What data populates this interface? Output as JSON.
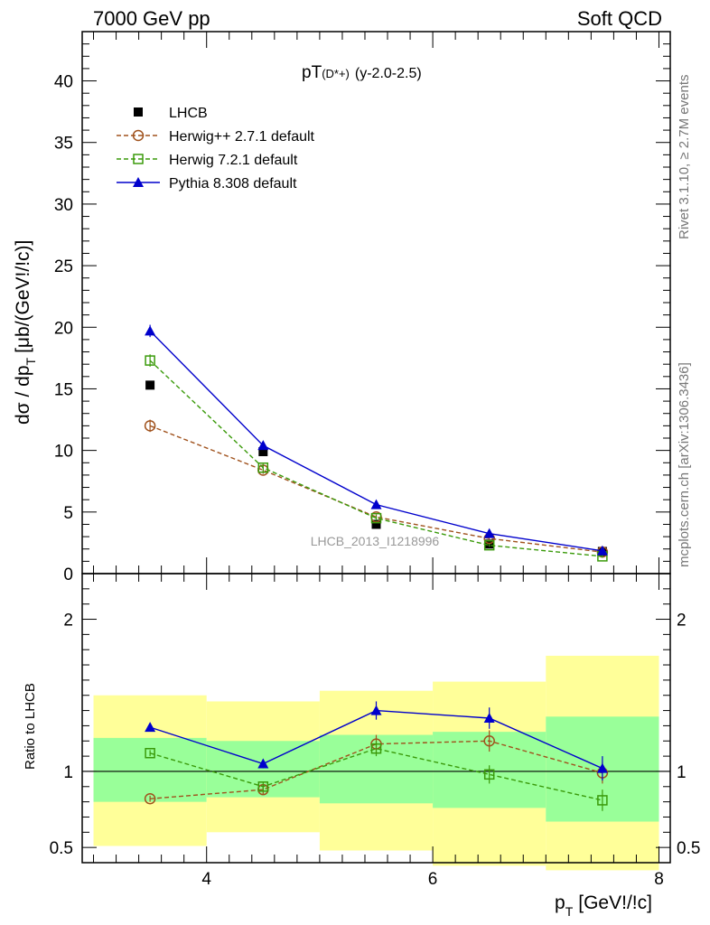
{
  "header": {
    "left": "7000 GeV pp",
    "right": "Soft QCD"
  },
  "side_labels": {
    "rivet": "Rivet 3.1.10, ≥ 2.7M events",
    "mcplots": "mcplots.cern.ch [arXiv:1306.3436]"
  },
  "chart_data": [
    {
      "type": "scatter",
      "title_main": "pT",
      "title_sub": "(D*+)",
      "title_rest": "(y-2.0-2.5)",
      "xlabel_main": "p",
      "xlabel_sub": "T",
      "xlabel_rest": "[GeV!/!c]",
      "ylabel_prefix": "dσ / dp",
      "ylabel_sub": "T",
      "ylabel_rest": "[μb/(GeV!/!c)]",
      "watermark": "LHCB_2013_I1218996",
      "xlim": [
        2.9,
        8.1
      ],
      "ylim": [
        0,
        44
      ],
      "x_ticks": [
        4,
        6,
        8
      ],
      "y_ticks": [
        0,
        5,
        10,
        15,
        20,
        25,
        30,
        35,
        40
      ],
      "y_tick_labels": [
        "0",
        "5",
        "10",
        "15",
        "20",
        "25",
        "30",
        "35",
        "40"
      ],
      "x": [
        3.5,
        4.5,
        5.5,
        6.5,
        7.5
      ],
      "legend_position": "top-left",
      "series": [
        {
          "name": "LHCB",
          "values": [
            15.3,
            9.9,
            4.0,
            2.4,
            1.8
          ],
          "errors": [
            0.3,
            0.3,
            0.15,
            0.1,
            0.1
          ],
          "color": "#000000",
          "marker": "filled-square",
          "line": "none"
        },
        {
          "name": "Herwig++ 2.7.1 default",
          "values": [
            12.0,
            8.4,
            4.6,
            2.85,
            1.75
          ],
          "errors": [
            0.5,
            0.3,
            0.2,
            0.12,
            0.1
          ],
          "color": "#a0521d",
          "marker": "open-circle",
          "line": "dashed"
        },
        {
          "name": "Herwig 7.2.1 default",
          "values": [
            17.3,
            8.6,
            4.5,
            2.3,
            1.4
          ],
          "errors": [
            0.5,
            0.3,
            0.2,
            0.12,
            0.1
          ],
          "color": "#3a9a0a",
          "marker": "open-square",
          "line": "dashed"
        },
        {
          "name": "Pythia 8.308 default",
          "values": [
            19.7,
            10.4,
            5.6,
            3.25,
            1.85
          ],
          "errors": [
            0.5,
            0.3,
            0.2,
            0.12,
            0.1
          ],
          "color": "#0000cc",
          "marker": "filled-triangle",
          "line": "solid"
        }
      ]
    },
    {
      "type": "scatter",
      "ylabel": "Ratio to LHCB",
      "xlim": [
        2.9,
        8.1
      ],
      "ylim": [
        0.4,
        2.3
      ],
      "y_ticks": [
        0.5,
        1,
        2
      ],
      "y_tick_labels": [
        "0.5",
        "1",
        "2"
      ],
      "x_ticks": [
        4,
        6,
        8
      ],
      "x_tick_labels": [
        "4",
        "6",
        "8"
      ],
      "reference_line": 1,
      "uncertainty_bands": {
        "bins": [
          [
            3.0,
            4.0
          ],
          [
            4.0,
            5.0
          ],
          [
            5.0,
            6.0
          ],
          [
            6.0,
            7.0
          ],
          [
            7.0,
            8.0
          ]
        ],
        "inner_color": "#99ff99",
        "outer_color": "#ffff99",
        "inner_low": [
          0.8,
          0.83,
          0.79,
          0.76,
          0.67
        ],
        "inner_high": [
          1.22,
          1.2,
          1.24,
          1.26,
          1.36
        ],
        "outer_low": [
          0.51,
          0.6,
          0.48,
          0.38,
          0.35
        ],
        "outer_high": [
          1.5,
          1.46,
          1.53,
          1.59,
          1.76
        ]
      },
      "x": [
        3.5,
        4.5,
        5.5,
        6.5,
        7.5
      ],
      "series": [
        {
          "name": "Herwig++ 2.7.1 default",
          "values": [
            0.82,
            0.88,
            1.18,
            1.2,
            0.99
          ],
          "errors": [
            0.02,
            0.03,
            0.06,
            0.07,
            0.07
          ],
          "color": "#a0521d",
          "marker": "open-circle",
          "line": "dashed"
        },
        {
          "name": "Herwig 7.2.1 default",
          "values": [
            1.12,
            0.9,
            1.15,
            0.98,
            0.81
          ],
          "errors": [
            0.02,
            0.03,
            0.05,
            0.06,
            0.07
          ],
          "color": "#3a9a0a",
          "marker": "open-square",
          "line": "dashed"
        },
        {
          "name": "Pythia 8.308 default",
          "values": [
            1.29,
            1.05,
            1.4,
            1.35,
            1.02
          ],
          "errors": [
            0.02,
            0.03,
            0.06,
            0.07,
            0.08
          ],
          "color": "#0000cc",
          "marker": "filled-triangle",
          "line": "solid"
        }
      ]
    }
  ]
}
